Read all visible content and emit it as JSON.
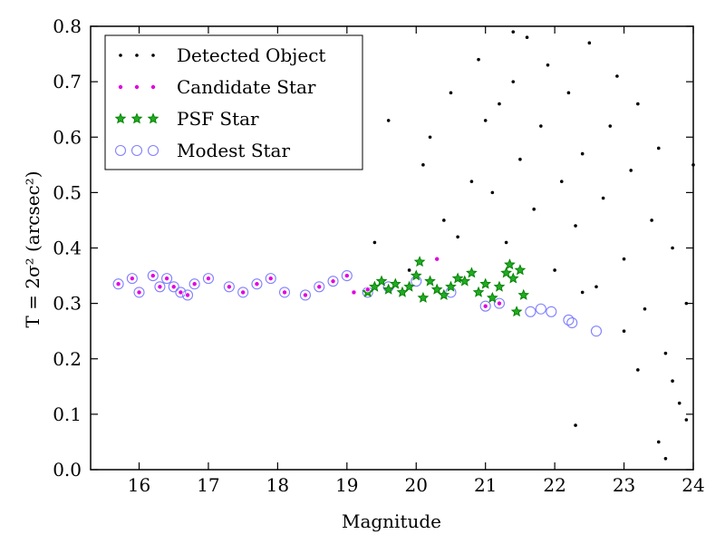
{
  "chart_data": {
    "type": "scatter",
    "xlabel": "Magnitude",
    "ylabel": "T = 2σ² (arcsec²)",
    "xlim": [
      15.3,
      24
    ],
    "ylim": [
      0.0,
      0.8
    ],
    "xticks": [
      "16",
      "17",
      "18",
      "19",
      "20",
      "21",
      "22",
      "23",
      "24"
    ],
    "yticks": [
      "0.0",
      "0.1",
      "0.2",
      "0.3",
      "0.4",
      "0.5",
      "0.6",
      "0.7",
      "0.8"
    ],
    "grid": false,
    "legend_position": "upper-left",
    "series": [
      {
        "name": "Detected Object",
        "marker": "dot",
        "color": "#000000",
        "points": [
          [
            20.1,
            0.55
          ],
          [
            20.2,
            0.6
          ],
          [
            20.4,
            0.45
          ],
          [
            20.5,
            0.68
          ],
          [
            20.6,
            0.42
          ],
          [
            20.8,
            0.52
          ],
          [
            20.9,
            0.74
          ],
          [
            21.0,
            0.63
          ],
          [
            21.1,
            0.5
          ],
          [
            21.2,
            0.66
          ],
          [
            21.3,
            0.41
          ],
          [
            21.4,
            0.7
          ],
          [
            21.5,
            0.56
          ],
          [
            21.6,
            0.78
          ],
          [
            21.7,
            0.47
          ],
          [
            21.8,
            0.62
          ],
          [
            21.9,
            0.73
          ],
          [
            22.0,
            0.36
          ],
          [
            22.1,
            0.52
          ],
          [
            22.2,
            0.68
          ],
          [
            22.3,
            0.44
          ],
          [
            22.4,
            0.57
          ],
          [
            22.5,
            0.77
          ],
          [
            22.6,
            0.33
          ],
          [
            22.7,
            0.49
          ],
          [
            22.8,
            0.62
          ],
          [
            22.9,
            0.71
          ],
          [
            23.0,
            0.38
          ],
          [
            23.1,
            0.54
          ],
          [
            23.2,
            0.66
          ],
          [
            23.3,
            0.29
          ],
          [
            23.4,
            0.45
          ],
          [
            23.5,
            0.58
          ],
          [
            23.6,
            0.21
          ],
          [
            23.7,
            0.4
          ],
          [
            23.8,
            0.12
          ],
          [
            23.9,
            0.3
          ],
          [
            23.5,
            0.05
          ],
          [
            23.6,
            0.02
          ],
          [
            22.3,
            0.08
          ],
          [
            19.4,
            0.41
          ],
          [
            19.6,
            0.63
          ],
          [
            19.9,
            0.36
          ],
          [
            21.4,
            0.79
          ],
          [
            22.4,
            0.32
          ],
          [
            23.0,
            0.25
          ],
          [
            23.2,
            0.18
          ],
          [
            23.7,
            0.16
          ],
          [
            23.9,
            0.09
          ],
          [
            24.0,
            0.55
          ]
        ]
      },
      {
        "name": "Candidate Star",
        "marker": "circle",
        "color": "#e000e0",
        "points": [
          [
            15.7,
            0.335
          ],
          [
            15.9,
            0.345
          ],
          [
            16.0,
            0.32
          ],
          [
            16.2,
            0.35
          ],
          [
            16.3,
            0.33
          ],
          [
            16.4,
            0.345
          ],
          [
            16.5,
            0.33
          ],
          [
            16.6,
            0.32
          ],
          [
            16.7,
            0.315
          ],
          [
            16.8,
            0.335
          ],
          [
            17.0,
            0.345
          ],
          [
            17.3,
            0.33
          ],
          [
            17.5,
            0.32
          ],
          [
            17.7,
            0.335
          ],
          [
            17.9,
            0.345
          ],
          [
            18.1,
            0.32
          ],
          [
            18.4,
            0.315
          ],
          [
            18.6,
            0.33
          ],
          [
            18.8,
            0.34
          ],
          [
            19.0,
            0.35
          ],
          [
            19.1,
            0.32
          ],
          [
            19.3,
            0.325
          ],
          [
            20.3,
            0.38
          ],
          [
            21.0,
            0.295
          ],
          [
            21.2,
            0.3
          ]
        ]
      },
      {
        "name": "PSF Star",
        "marker": "star",
        "color": "#008000",
        "points": [
          [
            19.3,
            0.32
          ],
          [
            19.4,
            0.33
          ],
          [
            19.5,
            0.34
          ],
          [
            19.6,
            0.325
          ],
          [
            19.7,
            0.335
          ],
          [
            19.8,
            0.32
          ],
          [
            19.9,
            0.33
          ],
          [
            20.0,
            0.35
          ],
          [
            20.05,
            0.375
          ],
          [
            20.1,
            0.31
          ],
          [
            20.2,
            0.34
          ],
          [
            20.3,
            0.325
          ],
          [
            20.4,
            0.315
          ],
          [
            20.5,
            0.33
          ],
          [
            20.6,
            0.345
          ],
          [
            20.7,
            0.34
          ],
          [
            20.8,
            0.355
          ],
          [
            20.9,
            0.32
          ],
          [
            21.0,
            0.335
          ],
          [
            21.1,
            0.31
          ],
          [
            21.2,
            0.33
          ],
          [
            21.3,
            0.355
          ],
          [
            21.35,
            0.37
          ],
          [
            21.4,
            0.345
          ],
          [
            21.45,
            0.285
          ],
          [
            21.5,
            0.36
          ],
          [
            21.55,
            0.315
          ]
        ]
      },
      {
        "name": "Modest Star",
        "marker": "open-circle",
        "color": "#8080ff",
        "points": [
          [
            15.7,
            0.335
          ],
          [
            15.9,
            0.345
          ],
          [
            16.0,
            0.32
          ],
          [
            16.2,
            0.35
          ],
          [
            16.3,
            0.33
          ],
          [
            16.4,
            0.345
          ],
          [
            16.5,
            0.33
          ],
          [
            16.6,
            0.32
          ],
          [
            16.7,
            0.315
          ],
          [
            16.8,
            0.335
          ],
          [
            17.0,
            0.345
          ],
          [
            17.3,
            0.33
          ],
          [
            17.5,
            0.32
          ],
          [
            17.7,
            0.335
          ],
          [
            17.9,
            0.345
          ],
          [
            18.1,
            0.32
          ],
          [
            18.4,
            0.315
          ],
          [
            18.6,
            0.33
          ],
          [
            18.8,
            0.34
          ],
          [
            19.0,
            0.35
          ],
          [
            19.3,
            0.32
          ],
          [
            19.6,
            0.33
          ],
          [
            20.0,
            0.34
          ],
          [
            20.5,
            0.32
          ],
          [
            21.0,
            0.295
          ],
          [
            21.2,
            0.3
          ],
          [
            21.65,
            0.285
          ],
          [
            21.8,
            0.29
          ],
          [
            21.95,
            0.285
          ],
          [
            22.2,
            0.27
          ],
          [
            22.25,
            0.265
          ],
          [
            22.6,
            0.25
          ]
        ]
      }
    ]
  }
}
